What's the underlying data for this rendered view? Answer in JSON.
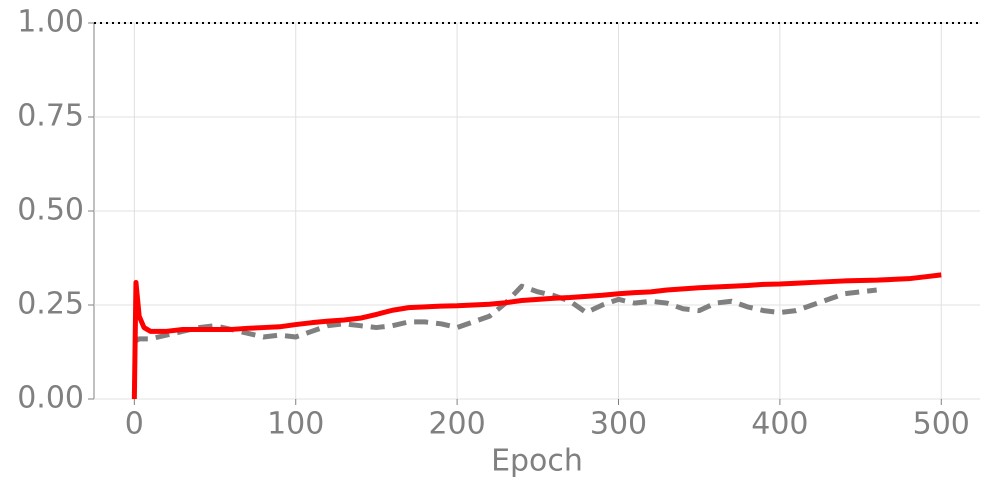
{
  "chart_data": {
    "type": "line",
    "x_label": "Epoch",
    "x": [
      0,
      1,
      3,
      6,
      10,
      20,
      30,
      40,
      50,
      60,
      70,
      80,
      90,
      100,
      110,
      120,
      130,
      140,
      150,
      160,
      170,
      180,
      190,
      200,
      210,
      220,
      230,
      240,
      250,
      260,
      270,
      280,
      290,
      300,
      310,
      320,
      330,
      340,
      350,
      360,
      370,
      380,
      390,
      400,
      410,
      420,
      430,
      440,
      450,
      460,
      470,
      480,
      490,
      500
    ],
    "series": [
      {
        "color": "#ff0000",
        "style": "solid",
        "values": [
          0,
          0.31,
          0.22,
          0.19,
          0.18,
          0.18,
          0.185,
          0.185,
          0.185,
          0.185,
          0.188,
          0.19,
          0.192,
          0.198,
          0.203,
          0.207,
          0.21,
          0.215,
          0.225,
          0.236,
          0.243,
          0.245,
          0.247,
          0.248,
          0.25,
          0.252,
          0.256,
          0.262,
          0.265,
          0.268,
          0.27,
          0.273,
          0.276,
          0.28,
          0.283,
          0.285,
          0.29,
          0.293,
          0.296,
          0.298,
          0.3,
          0.302,
          0.305,
          0.306,
          0.308,
          0.31,
          0.312,
          0.314,
          0.315,
          0.316,
          0.318,
          0.32,
          0.325,
          0.33
        ]
      },
      {
        "color": "#808080",
        "style": "dashed",
        "values": [
          0.155,
          0.155,
          0.16,
          0.16,
          0.16,
          0.17,
          0.18,
          0.19,
          0.195,
          0.185,
          0.175,
          0.165,
          0.17,
          0.165,
          0.18,
          0.195,
          0.2,
          0.195,
          0.19,
          0.195,
          0.205,
          0.205,
          0.2,
          0.19,
          0.205,
          0.22,
          0.255,
          0.3,
          0.285,
          0.275,
          0.26,
          0.23,
          0.25,
          0.265,
          0.255,
          0.26,
          0.255,
          0.24,
          0.235,
          0.255,
          0.26,
          0.245,
          0.235,
          0.23,
          0.235,
          0.25,
          0.265,
          0.28,
          0.285,
          0.29,
          null,
          null,
          null,
          null
        ]
      }
    ],
    "reference_line": {
      "value": 1,
      "style": "dotted",
      "color": "#000000"
    },
    "xlim": [
      -25,
      524
    ],
    "xticks": [
      0,
      100,
      200,
      300,
      400,
      500
    ],
    "ylim": [
      0,
      1
    ],
    "yticks": [
      {
        "value": 0,
        "label": "0.00"
      },
      {
        "value": 0.25,
        "label": "0.25"
      },
      {
        "value": 0.5,
        "label": "0.50"
      },
      {
        "value": 0.75,
        "label": "0.75"
      },
      {
        "value": 1,
        "label": "1.00"
      }
    ],
    "grid": true
  }
}
